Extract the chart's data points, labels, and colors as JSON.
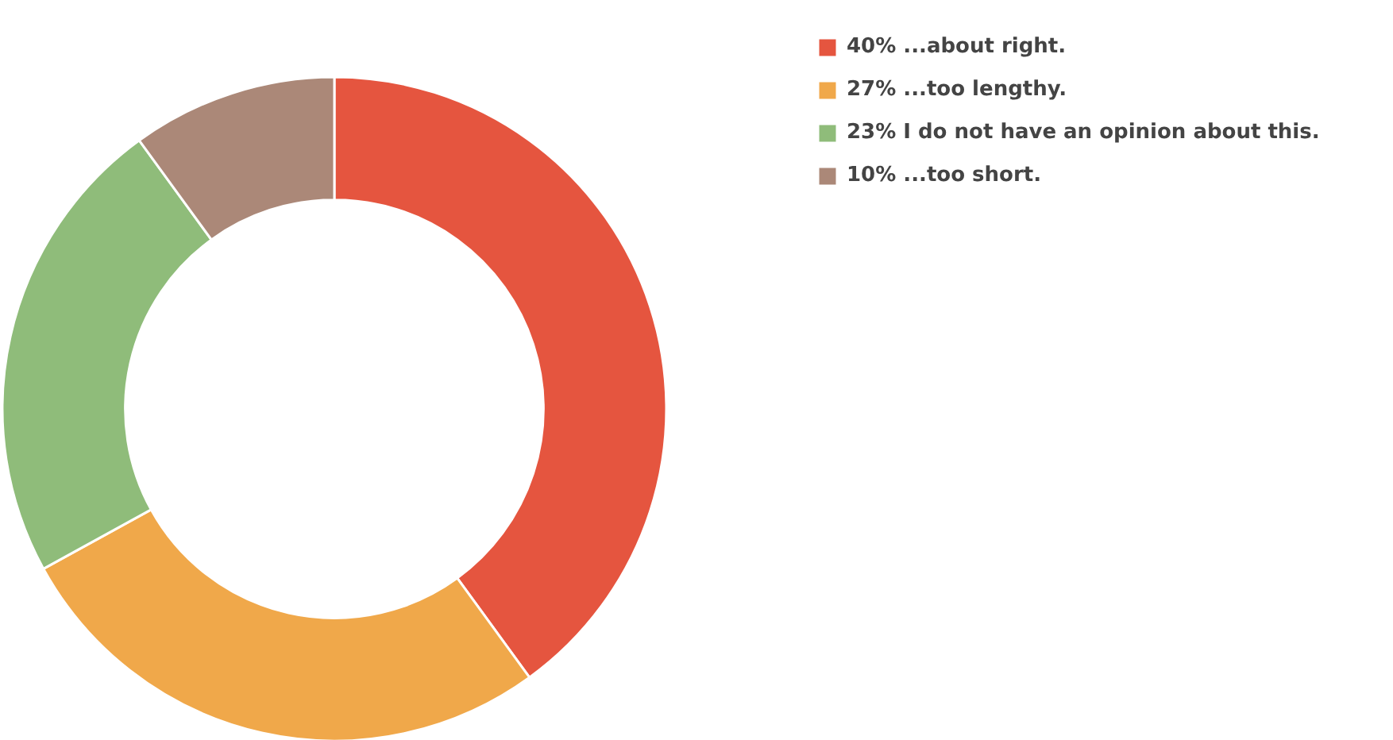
{
  "chart_data": {
    "type": "donut",
    "categories": [
      "...about right.",
      "...too lengthy.",
      "I do not have an opinion about this.",
      "...too short."
    ],
    "values": [
      40,
      27,
      23,
      10
    ],
    "value_labels": [
      "40%",
      "27%",
      "23%",
      "10%"
    ],
    "colors": [
      "#e5553f",
      "#f0a84a",
      "#8fbc7a",
      "#ab8878"
    ],
    "legend": "top right"
  }
}
